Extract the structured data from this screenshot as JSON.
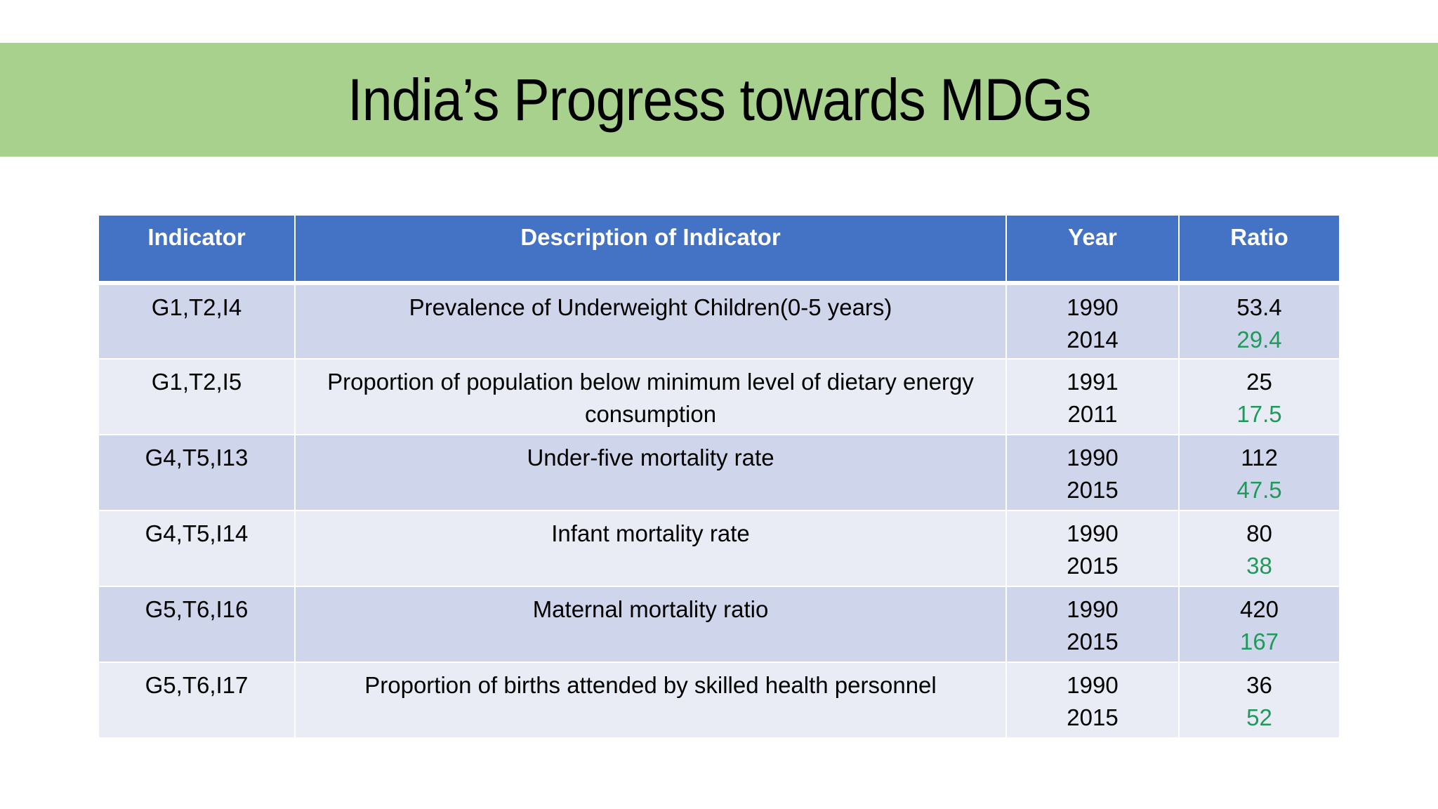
{
  "slide": {
    "title": "India’s Progress towards MDGs"
  },
  "colors": {
    "title_band": "#a9d18e",
    "header_fill": "#4472c4",
    "row_dark": "#cfd5ea",
    "row_light": "#e9ebf5",
    "later_value": "#1f9a5a"
  },
  "table": {
    "headers": [
      "Indicator",
      "Description of Indicator",
      "Year",
      "Ratio"
    ],
    "rows": [
      {
        "indicator": "G1,T2,I4",
        "description": "Prevalence of Underweight Children(0-5 years)",
        "year_start": "1990",
        "year_end": "2014",
        "ratio_start": "53.4",
        "ratio_end": "29.4"
      },
      {
        "indicator": "G1,T2,I5",
        "description": "Proportion of population below minimum level of dietary energy consumption",
        "year_start": "1991",
        "year_end": "2011",
        "ratio_start": "25",
        "ratio_end": "17.5"
      },
      {
        "indicator": "G4,T5,I13",
        "description": "Under-five mortality rate",
        "year_start": "1990",
        "year_end": "2015",
        "ratio_start": "112",
        "ratio_end": "47.5"
      },
      {
        "indicator": "G4,T5,I14",
        "description": "Infant mortality rate",
        "year_start": "1990",
        "year_end": "2015",
        "ratio_start": "80",
        "ratio_end": "38"
      },
      {
        "indicator": "G5,T6,I16",
        "description": "Maternal mortality ratio",
        "year_start": "1990",
        "year_end": "2015",
        "ratio_start": "420",
        "ratio_end": "167"
      },
      {
        "indicator": "G5,T6,I17",
        "description": "Proportion of births attended by skilled health personnel",
        "year_start": "1990",
        "year_end": "2015",
        "ratio_start": "36",
        "ratio_end": "52"
      }
    ]
  }
}
